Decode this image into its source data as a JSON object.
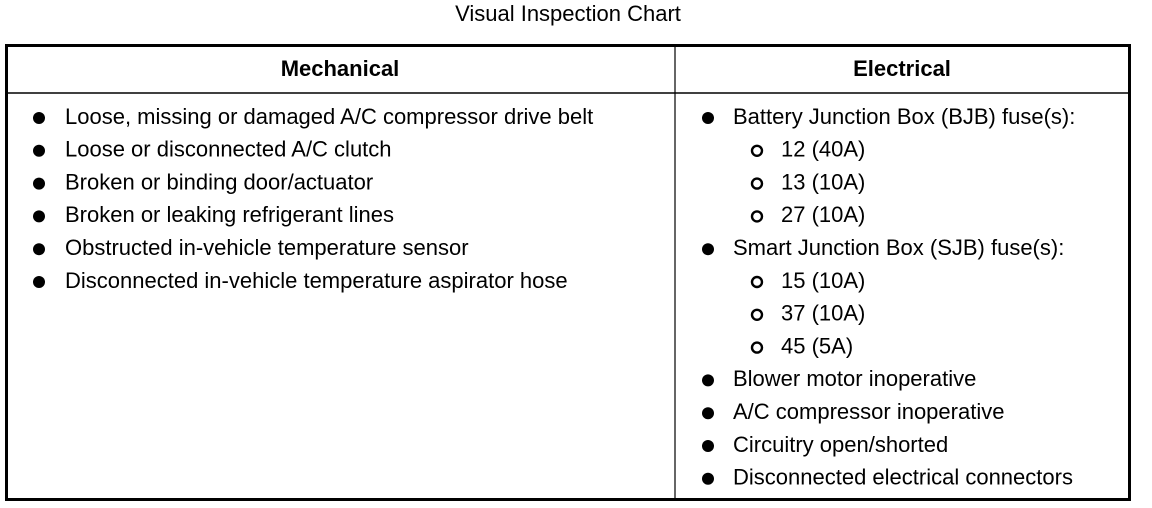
{
  "title": "Visual Inspection Chart",
  "table": {
    "headers": [
      "Mechanical",
      "Electrical"
    ],
    "columns": [
      {
        "items": [
          {
            "text": "Loose, missing or damaged A/C compressor drive belt"
          },
          {
            "text": "Loose or disconnected A/C clutch"
          },
          {
            "text": "Broken or binding door/actuator"
          },
          {
            "text": "Broken or leaking refrigerant lines"
          },
          {
            "text": "Obstructed in-vehicle temperature sensor"
          },
          {
            "text": "Disconnected in-vehicle temperature aspirator hose"
          }
        ]
      },
      {
        "items": [
          {
            "text": "Battery Junction Box (BJB) fuse(s):",
            "subitems": [
              "12 (40A)",
              "13 (10A)",
              "27 (10A)"
            ]
          },
          {
            "text": "Smart Junction Box (SJB) fuse(s):",
            "subitems": [
              "15 (10A)",
              "37 (10A)",
              "45 (5A)"
            ]
          },
          {
            "text": "Blower motor inoperative"
          },
          {
            "text": "A/C compressor inoperative"
          },
          {
            "text": "Circuitry open/shorted"
          },
          {
            "text": "Disconnected electrical connectors"
          }
        ]
      }
    ]
  }
}
